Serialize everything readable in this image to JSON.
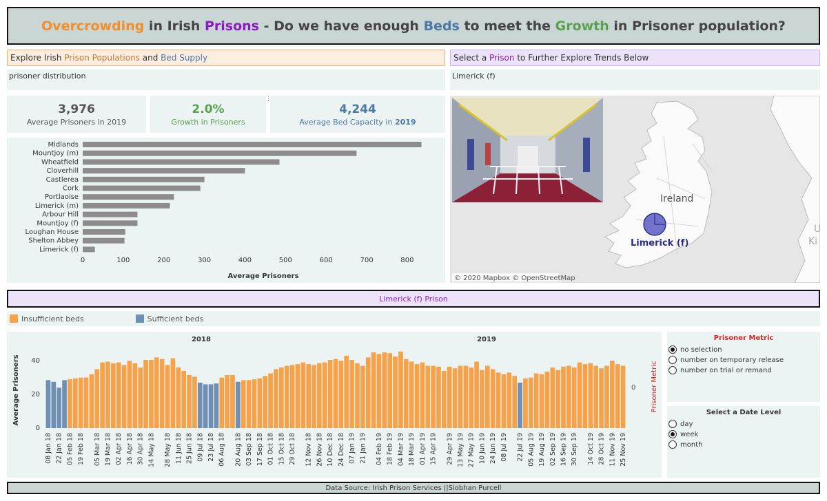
{
  "title": {
    "w1": "Overcrowding",
    "w2": " in Irish ",
    "w3": "Prisons",
    "w4": " - Do we have enough ",
    "w5": "Beds",
    "w6": " to meet the ",
    "w7": "Growth",
    "w8": " in Prisoner population?"
  },
  "left_header": {
    "p1": "Explore Irish ",
    "p2": "Prison Populations",
    "p3": " and ",
    "p4": "Bed Supply"
  },
  "right_header": {
    "p1": "Select a ",
    "p2": "Prison",
    "p3": " to Further Explore Trends Below"
  },
  "left_subtitle": "prisoner distribution",
  "right_subtitle": "Limerick (f)",
  "kpis": [
    {
      "value": "3,976",
      "label": "Average Prisoners in 2019",
      "color": "#555555"
    },
    {
      "value": "2.0%",
      "label": "Growth in Prisoners",
      "color": "#59a14f"
    },
    {
      "value": "4,244",
      "label_a": "Average Bed Capacity in ",
      "label_b": "2019",
      "color": "#4e79a7"
    }
  ],
  "map": {
    "country_label": "Ireland",
    "marker_label": "Limerick (f)",
    "edge_label_1": "U",
    "edge_label_2": "Ki",
    "attribution": "© 2020 Mapbox © OpenStreetMap"
  },
  "section_title": "Limerick (f) Prison",
  "legend": {
    "insufficient": "Insufficient beds",
    "sufficient": "Sufficient beds"
  },
  "colors": {
    "insufficient": "#f5a24b",
    "sufficient": "#6f8fb5",
    "hbar": "#8c8c8c"
  },
  "prisoner_metric": {
    "title": "Prisoner Metric",
    "options": [
      "no selection",
      "number on temporary release",
      "number on trial or remand"
    ],
    "selected": 0,
    "side_label": "Prisoner Metric",
    "side_value": "0"
  },
  "date_level": {
    "title": "Select a Date Level",
    "options": [
      "day",
      "week",
      "month"
    ],
    "selected": 1
  },
  "footer": "Data Source: Irish Prison Services ||Siobhan Purcell",
  "chart_data": [
    {
      "type": "bar",
      "orientation": "horizontal",
      "categories": [
        "Midlands",
        "Mountjoy (m)",
        "Wheatfield",
        "Cloverhill",
        "Castlerea",
        "Cork",
        "Portlaoise",
        "Limerick (m)",
        "Arbour Hill",
        "Mountjoy (f)",
        "Loughan House",
        "Shelton Abbey",
        "Limerick (f)"
      ],
      "values": [
        835,
        675,
        485,
        400,
        300,
        290,
        225,
        215,
        135,
        135,
        105,
        103,
        30
      ],
      "xlabel": "Average Prisoners",
      "xticks": [
        0,
        100,
        200,
        300,
        400,
        500,
        600,
        700,
        800
      ],
      "xlim": [
        0,
        880
      ]
    },
    {
      "type": "bar",
      "year_labels": [
        "2018",
        "2019"
      ],
      "ylabel": "Average Prisoners",
      "yticks": [
        0,
        20,
        40
      ],
      "ylim": [
        0,
        45
      ],
      "tick_labels": [
        "08 Jan 18",
        "22 Jan 18",
        "05 Feb 18",
        "19 Feb 18",
        "05 Mar 18",
        "19 Mar 18",
        "02 Apr 18",
        "16 Apr 18",
        "30 Apr 18",
        "14 May 18",
        "28 May 18",
        "11 Jun 18",
        "25 Jun 18",
        "09 Jul 18",
        "23 Jul 18",
        "06 Aug 18",
        "20 Aug 18",
        "03 Sep 18",
        "17 Sep 18",
        "01 Oct 18",
        "15 Oct 18",
        "29 Oct 18",
        "12 Nov 18",
        "26 Nov 18",
        "10 Dec 18",
        "24 Dec 18",
        "07 Jan 19",
        "21 Jan 19",
        "04 Feb 19",
        "18 Feb 19",
        "04 Mar 19",
        "18 Mar 19",
        "01 Apr 19",
        "15 Apr 19",
        "29 Apr 19",
        "13 May 19",
        "27 May 19",
        "10 Jun 19",
        "24 Jun 19",
        "08 Jul 19",
        "22 Jul 19",
        "05 Aug 19",
        "19 Aug 19",
        "02 Sep 19",
        "16 Sep 19",
        "30 Sep 19",
        "14 Oct 19",
        "28 Oct 19",
        "11 Nov 19",
        "25 Nov 19"
      ],
      "values": [
        28.5,
        27.5,
        24,
        28.5,
        29,
        29.5,
        30,
        30,
        32,
        35,
        39,
        39.5,
        38.5,
        39,
        37.5,
        40,
        38.5,
        36,
        40.5,
        40.5,
        42,
        41,
        37.5,
        41.5,
        36,
        34,
        31.5,
        30.5,
        27,
        26,
        26,
        26.5,
        30,
        31.5,
        31.5,
        27.5,
        28.5,
        28.5,
        29,
        29.5,
        31,
        32.5,
        35,
        36,
        37,
        37.5,
        38,
        39,
        38,
        37.5,
        38.5,
        39,
        40.5,
        41,
        40,
        43,
        40.5,
        38.5,
        37,
        42,
        45,
        44,
        45,
        44.5,
        42.5,
        45.5,
        41,
        39.5,
        38,
        39,
        37,
        37,
        36.5,
        34,
        36.5,
        35.5,
        37,
        37,
        36,
        39.5,
        34.5,
        37,
        35,
        33,
        32,
        33,
        31,
        27,
        29.5,
        30,
        32.5,
        32,
        33.5,
        36,
        34.5,
        36.5,
        37,
        36,
        39,
        38,
        38.5,
        37,
        35.5,
        37,
        40,
        38,
        37
      ],
      "sufficient_flags": [
        1,
        1,
        1,
        1,
        0,
        0,
        0,
        0,
        0,
        0,
        0,
        0,
        0,
        0,
        0,
        0,
        0,
        0,
        0,
        0,
        0,
        0,
        0,
        0,
        0,
        0,
        0,
        0,
        1,
        1,
        1,
        1,
        0,
        0,
        0,
        1,
        0,
        0,
        0,
        0,
        0,
        0,
        0,
        0,
        0,
        0,
        0,
        0,
        0,
        0,
        0,
        0,
        0,
        0,
        0,
        0,
        0,
        0,
        0,
        0,
        0,
        0,
        0,
        0,
        0,
        0,
        0,
        0,
        0,
        0,
        0,
        0,
        0,
        0,
        0,
        0,
        0,
        0,
        0,
        0,
        0,
        0,
        0,
        0,
        0,
        0,
        0,
        1,
        0,
        0,
        0,
        0,
        0,
        0,
        0,
        0,
        0,
        0,
        0,
        0,
        0,
        0,
        0,
        0,
        0,
        0,
        0
      ]
    }
  ]
}
